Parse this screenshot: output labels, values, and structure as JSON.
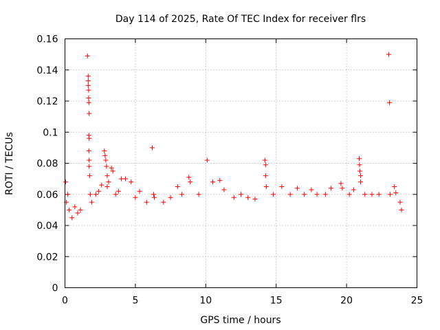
{
  "chart_data": {
    "type": "scatter",
    "title": "Day 114 of 2025, Rate Of TEC Index for receiver flrs",
    "xlabel": "GPS time / hours",
    "ylabel": "ROTI / TECUs",
    "xlim": [
      0,
      25
    ],
    "ylim": [
      0,
      0.16
    ],
    "x_ticks": [
      0,
      5,
      10,
      15,
      20,
      25
    ],
    "x_tick_labels": [
      "0",
      "5",
      "10",
      "15",
      "20",
      "25"
    ],
    "y_ticks": [
      0,
      0.02,
      0.04,
      0.06,
      0.08,
      0.1,
      0.12,
      0.14,
      0.16
    ],
    "y_tick_labels": [
      "0",
      "0.02",
      "0.04",
      "0.06",
      "0.08",
      "0.1",
      "0.12",
      "0.14",
      "0.16"
    ],
    "grid": true,
    "marker": "+",
    "color": "#ff0000",
    "series": [
      {
        "name": "ROTI",
        "points": [
          [
            0.05,
            0.068
          ],
          [
            0.1,
            0.055
          ],
          [
            0.2,
            0.06
          ],
          [
            0.3,
            0.05
          ],
          [
            0.5,
            0.045
          ],
          [
            0.7,
            0.052
          ],
          [
            0.9,
            0.048
          ],
          [
            1.1,
            0.05
          ],
          [
            1.6,
            0.149
          ],
          [
            1.65,
            0.136
          ],
          [
            1.65,
            0.133
          ],
          [
            1.65,
            0.13
          ],
          [
            1.68,
            0.127
          ],
          [
            1.68,
            0.122
          ],
          [
            1.7,
            0.119
          ],
          [
            1.72,
            0.112
          ],
          [
            1.7,
            0.098
          ],
          [
            1.72,
            0.096
          ],
          [
            1.7,
            0.088
          ],
          [
            1.72,
            0.082
          ],
          [
            1.72,
            0.078
          ],
          [
            1.75,
            0.072
          ],
          [
            1.8,
            0.06
          ],
          [
            1.9,
            0.055
          ],
          [
            2.2,
            0.06
          ],
          [
            2.4,
            0.062
          ],
          [
            2.6,
            0.066
          ],
          [
            2.8,
            0.088
          ],
          [
            2.85,
            0.085
          ],
          [
            2.9,
            0.082
          ],
          [
            2.95,
            0.078
          ],
          [
            3.0,
            0.072
          ],
          [
            3.1,
            0.068
          ],
          [
            3.0,
            0.065
          ],
          [
            3.3,
            0.077
          ],
          [
            3.4,
            0.075
          ],
          [
            3.6,
            0.06
          ],
          [
            3.8,
            0.062
          ],
          [
            4.0,
            0.07
          ],
          [
            4.3,
            0.07
          ],
          [
            4.7,
            0.068
          ],
          [
            5.0,
            0.058
          ],
          [
            5.3,
            0.062
          ],
          [
            5.8,
            0.055
          ],
          [
            6.2,
            0.09
          ],
          [
            6.3,
            0.06
          ],
          [
            6.35,
            0.058
          ],
          [
            7.0,
            0.055
          ],
          [
            7.5,
            0.058
          ],
          [
            8.0,
            0.065
          ],
          [
            8.3,
            0.06
          ],
          [
            8.8,
            0.071
          ],
          [
            8.9,
            0.068
          ],
          [
            9.5,
            0.06
          ],
          [
            10.1,
            0.082
          ],
          [
            10.5,
            0.068
          ],
          [
            11.0,
            0.069
          ],
          [
            11.3,
            0.063
          ],
          [
            12.0,
            0.058
          ],
          [
            12.5,
            0.06
          ],
          [
            13.0,
            0.058
          ],
          [
            13.5,
            0.057
          ],
          [
            14.2,
            0.082
          ],
          [
            14.25,
            0.079
          ],
          [
            14.25,
            0.072
          ],
          [
            14.3,
            0.065
          ],
          [
            14.8,
            0.06
          ],
          [
            15.4,
            0.065
          ],
          [
            16.0,
            0.06
          ],
          [
            16.5,
            0.064
          ],
          [
            17.0,
            0.06
          ],
          [
            17.5,
            0.063
          ],
          [
            17.9,
            0.06
          ],
          [
            18.5,
            0.06
          ],
          [
            18.9,
            0.064
          ],
          [
            19.6,
            0.067
          ],
          [
            19.7,
            0.064
          ],
          [
            20.2,
            0.06
          ],
          [
            20.5,
            0.063
          ],
          [
            20.9,
            0.083
          ],
          [
            20.92,
            0.079
          ],
          [
            20.95,
            0.075
          ],
          [
            21.0,
            0.072
          ],
          [
            21.0,
            0.068
          ],
          [
            21.3,
            0.06
          ],
          [
            21.8,
            0.06
          ],
          [
            22.3,
            0.06
          ],
          [
            23.0,
            0.15
          ],
          [
            23.05,
            0.119
          ],
          [
            23.1,
            0.06
          ],
          [
            23.4,
            0.065
          ],
          [
            23.5,
            0.061
          ],
          [
            23.8,
            0.055
          ],
          [
            23.9,
            0.05
          ]
        ]
      }
    ]
  }
}
